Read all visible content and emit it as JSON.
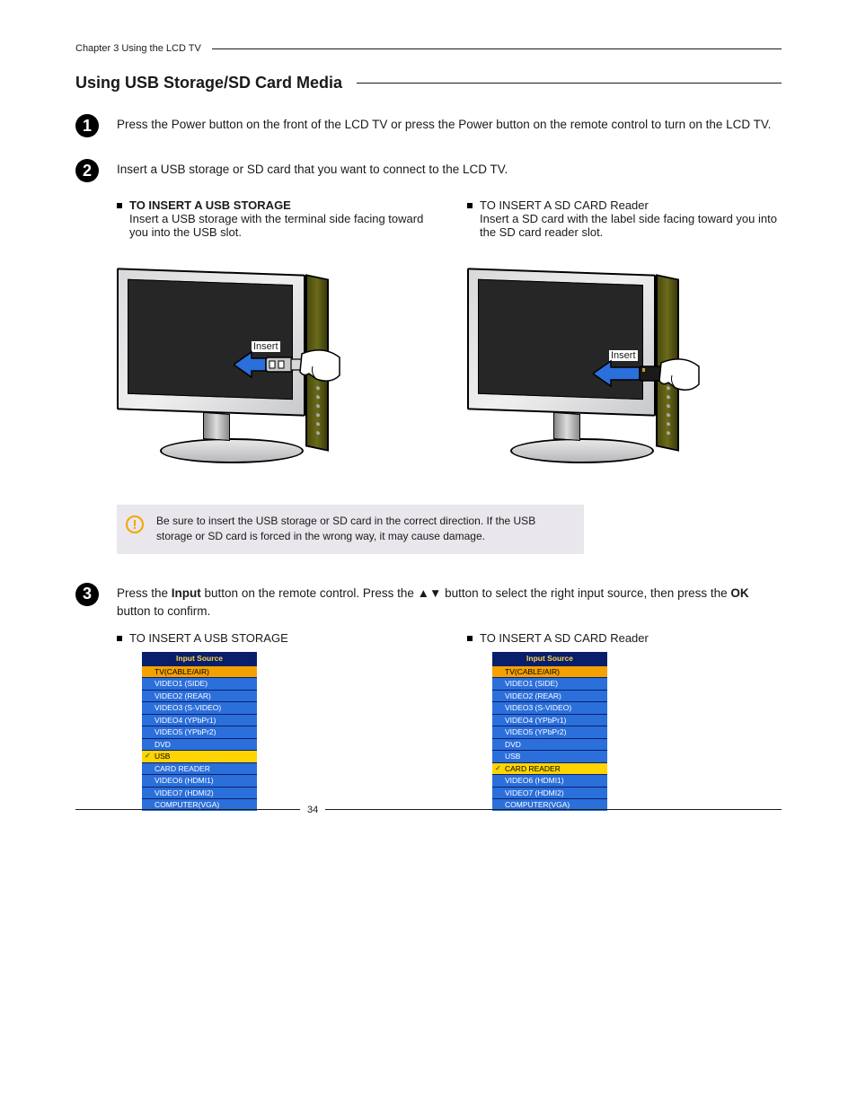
{
  "header": {
    "chapter": "Chapter 3 Using the LCD TV"
  },
  "section": {
    "title": "Using USB Storage/SD Card Media"
  },
  "steps": {
    "s1": "Press the Power button on the front of the LCD TV or press the Power button on the remote control to turn on the  LCD TV.",
    "s2": "Insert a USB storage or SD card that you want to connect to the LCD TV.",
    "s3_a": "Press the ",
    "s3_input": "Input",
    "s3_b": " button on the remote control. Press the ",
    "s3_arrows": "▲▼",
    "s3_c": " button to select the right input source, then press the ",
    "s3_ok": "OK",
    "s3_d": " button to confirm."
  },
  "sub": {
    "usb_title": "TO INSERT A USB STORAGE",
    "usb_text": "Insert a USB storage with the terminal side facing toward you into the USB slot.",
    "sd_title": "TO INSERT A SD CARD Reader",
    "sd_text": "Insert a SD card with the label side facing toward you into the SD card reader slot.",
    "insert_label": "Insert"
  },
  "warning": "Be sure to insert the USB storage or SD card in the correct direction. If the USB storage or SD card  is forced in the wrong way, it may cause damage.",
  "menu_header": "Input Source",
  "menu_rows": [
    "TV(CABLE/AIR)",
    "VIDEO1 (SIDE)",
    "VIDEO2 (REAR)",
    "VIDEO3 (S-VIDEO)",
    "VIDEO4 (YPbPr1)",
    "VIDEO5 (YPbPr2)",
    "DVD",
    "USB",
    "CARD READER",
    "VIDEO6 (HDMI1)",
    "VIDEO7 (HDMI2)",
    "COMPUTER(VGA)"
  ],
  "menu_usb": {
    "highlight_index": 7,
    "orange_index": 0
  },
  "menu_sd": {
    "highlight_index": 8,
    "orange_index": 0
  },
  "labels": {
    "usb_menu_title": "TO INSERT A USB STORAGE",
    "sd_menu_title": "TO INSERT A SD CARD Reader"
  },
  "page_number": "34",
  "colors": {
    "menu_header_bg": "#0a1f6b",
    "menu_header_fg": "#ffd24a",
    "menu_blue": "#2b6fdb",
    "menu_yellow": "#ffd400",
    "menu_orange": "#f5a100",
    "warning_bg": "#e9e6ec",
    "warning_icon": "#f5a500"
  }
}
